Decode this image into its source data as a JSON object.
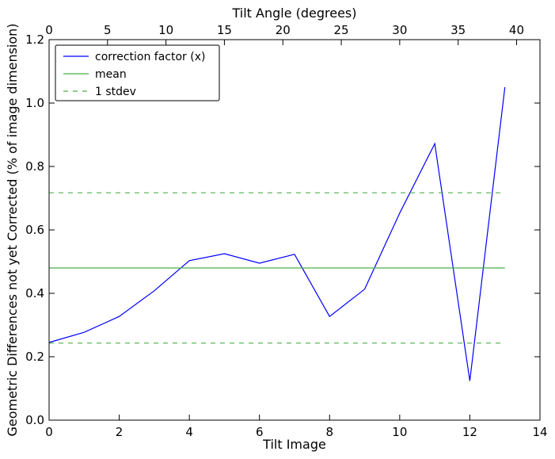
{
  "chart_data": {
    "type": "line",
    "xlabel": "Tilt Image",
    "ylabel": "Geometric Differences not yet Corrected (% of image dimension)",
    "top_xlabel": "Tilt Angle (degrees)",
    "xlim": [
      0,
      14
    ],
    "ylim": [
      0.0,
      1.2
    ],
    "top_xlim": [
      0,
      42
    ],
    "x_ticks": [
      0,
      2,
      4,
      6,
      8,
      10,
      12,
      14
    ],
    "x_tick_labels": [
      "0",
      "2",
      "4",
      "6",
      "8",
      "10",
      "12",
      "14"
    ],
    "y_ticks": [
      0.0,
      0.2,
      0.4,
      0.6,
      0.8,
      1.0,
      1.2
    ],
    "y_tick_labels": [
      "0.0",
      "0.2",
      "0.4",
      "0.6",
      "0.8",
      "1.0",
      "1.2"
    ],
    "top_x_ticks": [
      0,
      5,
      10,
      15,
      20,
      25,
      30,
      35,
      40
    ],
    "top_x_tick_labels": [
      "0",
      "5",
      "10",
      "15",
      "20",
      "25",
      "30",
      "35",
      "40"
    ],
    "grid": false,
    "legend_position": "top-left",
    "series": [
      {
        "name": "correction factor (x)",
        "color": "#0000ff",
        "style": "solid",
        "x": [
          0,
          1,
          2,
          3,
          4,
          5,
          6,
          7,
          8,
          9,
          10,
          11,
          12,
          13
        ],
        "y": [
          0.245,
          0.277,
          0.327,
          0.408,
          0.503,
          0.525,
          0.495,
          0.523,
          0.327,
          0.413,
          0.653,
          0.872,
          0.124,
          1.05
        ]
      },
      {
        "name": "mean",
        "color": "#4caf4c",
        "style": "solid",
        "x": [
          0,
          13
        ],
        "y": [
          0.48,
          0.48
        ]
      },
      {
        "name": "1 stdev",
        "color": "#4caf4c",
        "style": "dashed",
        "x": [
          0,
          13
        ],
        "y": [
          0.717,
          0.717
        ]
      },
      {
        "name": "",
        "color": "#4caf4c",
        "style": "dashed",
        "x": [
          0,
          13
        ],
        "y": [
          0.243,
          0.243
        ]
      }
    ],
    "legend_entries": [
      {
        "label": "correction factor (x)",
        "color": "#0000ff",
        "style": "solid"
      },
      {
        "label": "mean",
        "color": "#4caf4c",
        "style": "solid"
      },
      {
        "label": "1 stdev",
        "color": "#4caf4c",
        "style": "dashed"
      }
    ]
  }
}
